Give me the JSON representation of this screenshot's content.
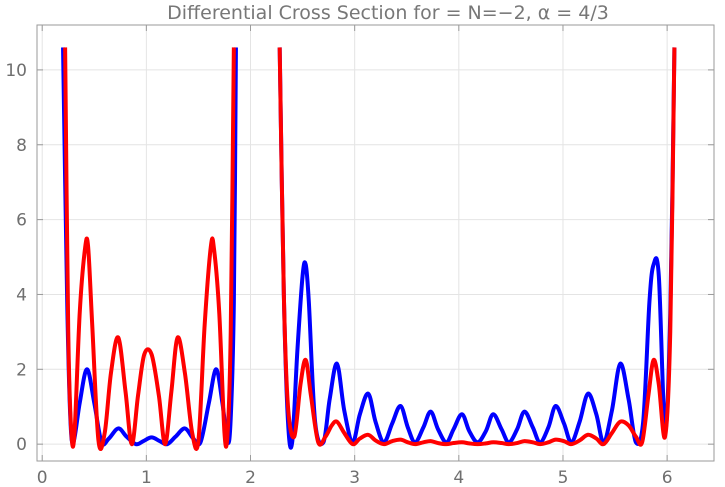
{
  "chart_data": {
    "type": "line",
    "title": "Differential Cross Section for = N=−2, α = 4/3",
    "xlabel": "",
    "ylabel": "",
    "xlim": [
      -0.05,
      6.45
    ],
    "ylim": [
      -0.45,
      11.2
    ],
    "xticks": [
      0,
      1,
      2,
      3,
      4,
      5,
      6
    ],
    "xtick_labels": [
      "0",
      "1",
      "2",
      "3",
      "4",
      "5",
      "6"
    ],
    "yticks": [
      0,
      2,
      4,
      6,
      8,
      10
    ],
    "ytick_labels": [
      "0",
      "2",
      "4",
      "6",
      "8",
      "10"
    ],
    "grid": true,
    "legend": "none",
    "series": [
      {
        "color": "#0000ff",
        "segments": [
          {
            "x": [
              0.2,
              0.24,
              0.27,
              0.3,
              0.36,
              0.43,
              0.5,
              0.57,
              0.64,
              0.73,
              0.81,
              0.9,
              0.97,
              1.05,
              1.13,
              1.2,
              1.28,
              1.37,
              1.45,
              1.52,
              1.6,
              1.67,
              1.73,
              1.78,
              1.81,
              1.84,
              1.86
            ],
            "y": [
              10.6,
              3.8,
              0.7,
              0.05,
              1.1,
              2.0,
              1.1,
              0.05,
              0.15,
              0.42,
              0.2,
              0.0,
              0.08,
              0.18,
              0.08,
              0.0,
              0.2,
              0.42,
              0.15,
              0.05,
              1.1,
              2.0,
              1.1,
              0.05,
              0.7,
              3.8,
              10.6
            ]
          },
          {
            "x": [
              2.28,
              2.32,
              2.36,
              2.4,
              2.45,
              2.5,
              2.53,
              2.56,
              2.62,
              2.7,
              2.76,
              2.83,
              2.9,
              2.98,
              3.05,
              3.13,
              3.2,
              3.28,
              3.36,
              3.44,
              3.51,
              3.58,
              3.66,
              3.73,
              3.8,
              3.88,
              3.95,
              4.03,
              4.1,
              4.18,
              4.26,
              4.33,
              4.41,
              4.48,
              4.56,
              4.63,
              4.71,
              4.78,
              4.86,
              4.93,
              5.01,
              5.08,
              5.16,
              5.24,
              5.32,
              5.39,
              5.47,
              5.55,
              5.63,
              5.7,
              5.77,
              5.83,
              5.87,
              5.92,
              5.98,
              6.03,
              6.07
            ],
            "y": [
              10.6,
              4.0,
              0.6,
              0.05,
              2.5,
              4.5,
              4.8,
              3.8,
              0.6,
              0.05,
              1.2,
              2.15,
              0.9,
              0.05,
              0.8,
              1.35,
              0.6,
              0.05,
              0.55,
              1.02,
              0.45,
              0.05,
              0.45,
              0.87,
              0.4,
              0.05,
              0.4,
              0.8,
              0.35,
              0.05,
              0.35,
              0.8,
              0.4,
              0.05,
              0.4,
              0.87,
              0.45,
              0.05,
              0.45,
              1.02,
              0.55,
              0.05,
              0.6,
              1.35,
              0.8,
              0.05,
              0.9,
              2.15,
              1.2,
              0.05,
              0.6,
              3.8,
              4.8,
              4.5,
              0.4,
              3.5,
              10.6
            ]
          }
        ]
      },
      {
        "color": "#ff0000",
        "segments": [
          {
            "x": [
              0.22,
              0.25,
              0.28,
              0.31,
              0.36,
              0.41,
              0.44,
              0.48,
              0.54,
              0.6,
              0.66,
              0.73,
              0.8,
              0.86,
              0.92,
              0.98,
              1.05,
              1.12,
              1.18,
              1.24,
              1.3,
              1.37,
              1.44,
              1.5,
              1.56,
              1.62,
              1.65,
              1.7,
              1.75,
              1.78,
              1.81,
              1.84
            ],
            "y": [
              10.6,
              3.0,
              0.3,
              0.3,
              3.5,
              5.2,
              5.3,
              3.2,
              0.1,
              0.3,
              1.9,
              2.85,
              1.4,
              0.0,
              1.3,
              2.4,
              2.4,
              1.3,
              0.0,
              1.4,
              2.85,
              1.9,
              0.3,
              0.1,
              3.2,
              5.3,
              5.2,
              3.5,
              0.3,
              0.3,
              3.0,
              10.6
            ]
          },
          {
            "x": [
              2.28,
              2.32,
              2.36,
              2.42,
              2.48,
              2.53,
              2.58,
              2.65,
              2.72,
              2.78,
              2.83,
              2.9,
              2.98,
              3.05,
              3.13,
              3.2,
              3.28,
              3.36,
              3.44,
              3.51,
              3.58,
              3.66,
              3.73,
              3.8,
              3.88,
              3.95,
              4.03,
              4.1,
              4.18,
              4.26,
              4.33,
              4.41,
              4.48,
              4.56,
              4.63,
              4.71,
              4.78,
              4.86,
              4.93,
              5.01,
              5.08,
              5.16,
              5.24,
              5.32,
              5.39,
              5.47,
              5.55,
              5.63,
              5.7,
              5.76,
              5.82,
              5.87,
              5.92,
              5.98,
              6.03,
              6.07
            ],
            "y": [
              10.6,
              4.0,
              1.0,
              0.2,
              1.6,
              2.25,
              1.3,
              0.05,
              0.2,
              0.5,
              0.6,
              0.3,
              0.0,
              0.15,
              0.25,
              0.1,
              0.0,
              0.08,
              0.12,
              0.05,
              0.0,
              0.05,
              0.08,
              0.03,
              0.0,
              0.03,
              0.05,
              0.02,
              0.0,
              0.02,
              0.05,
              0.03,
              0.0,
              0.03,
              0.08,
              0.05,
              0.0,
              0.05,
              0.12,
              0.08,
              0.0,
              0.1,
              0.25,
              0.15,
              0.0,
              0.3,
              0.6,
              0.5,
              0.2,
              0.05,
              1.3,
              2.25,
              1.6,
              0.2,
              3.0,
              10.6
            ]
          }
        ]
      }
    ]
  }
}
